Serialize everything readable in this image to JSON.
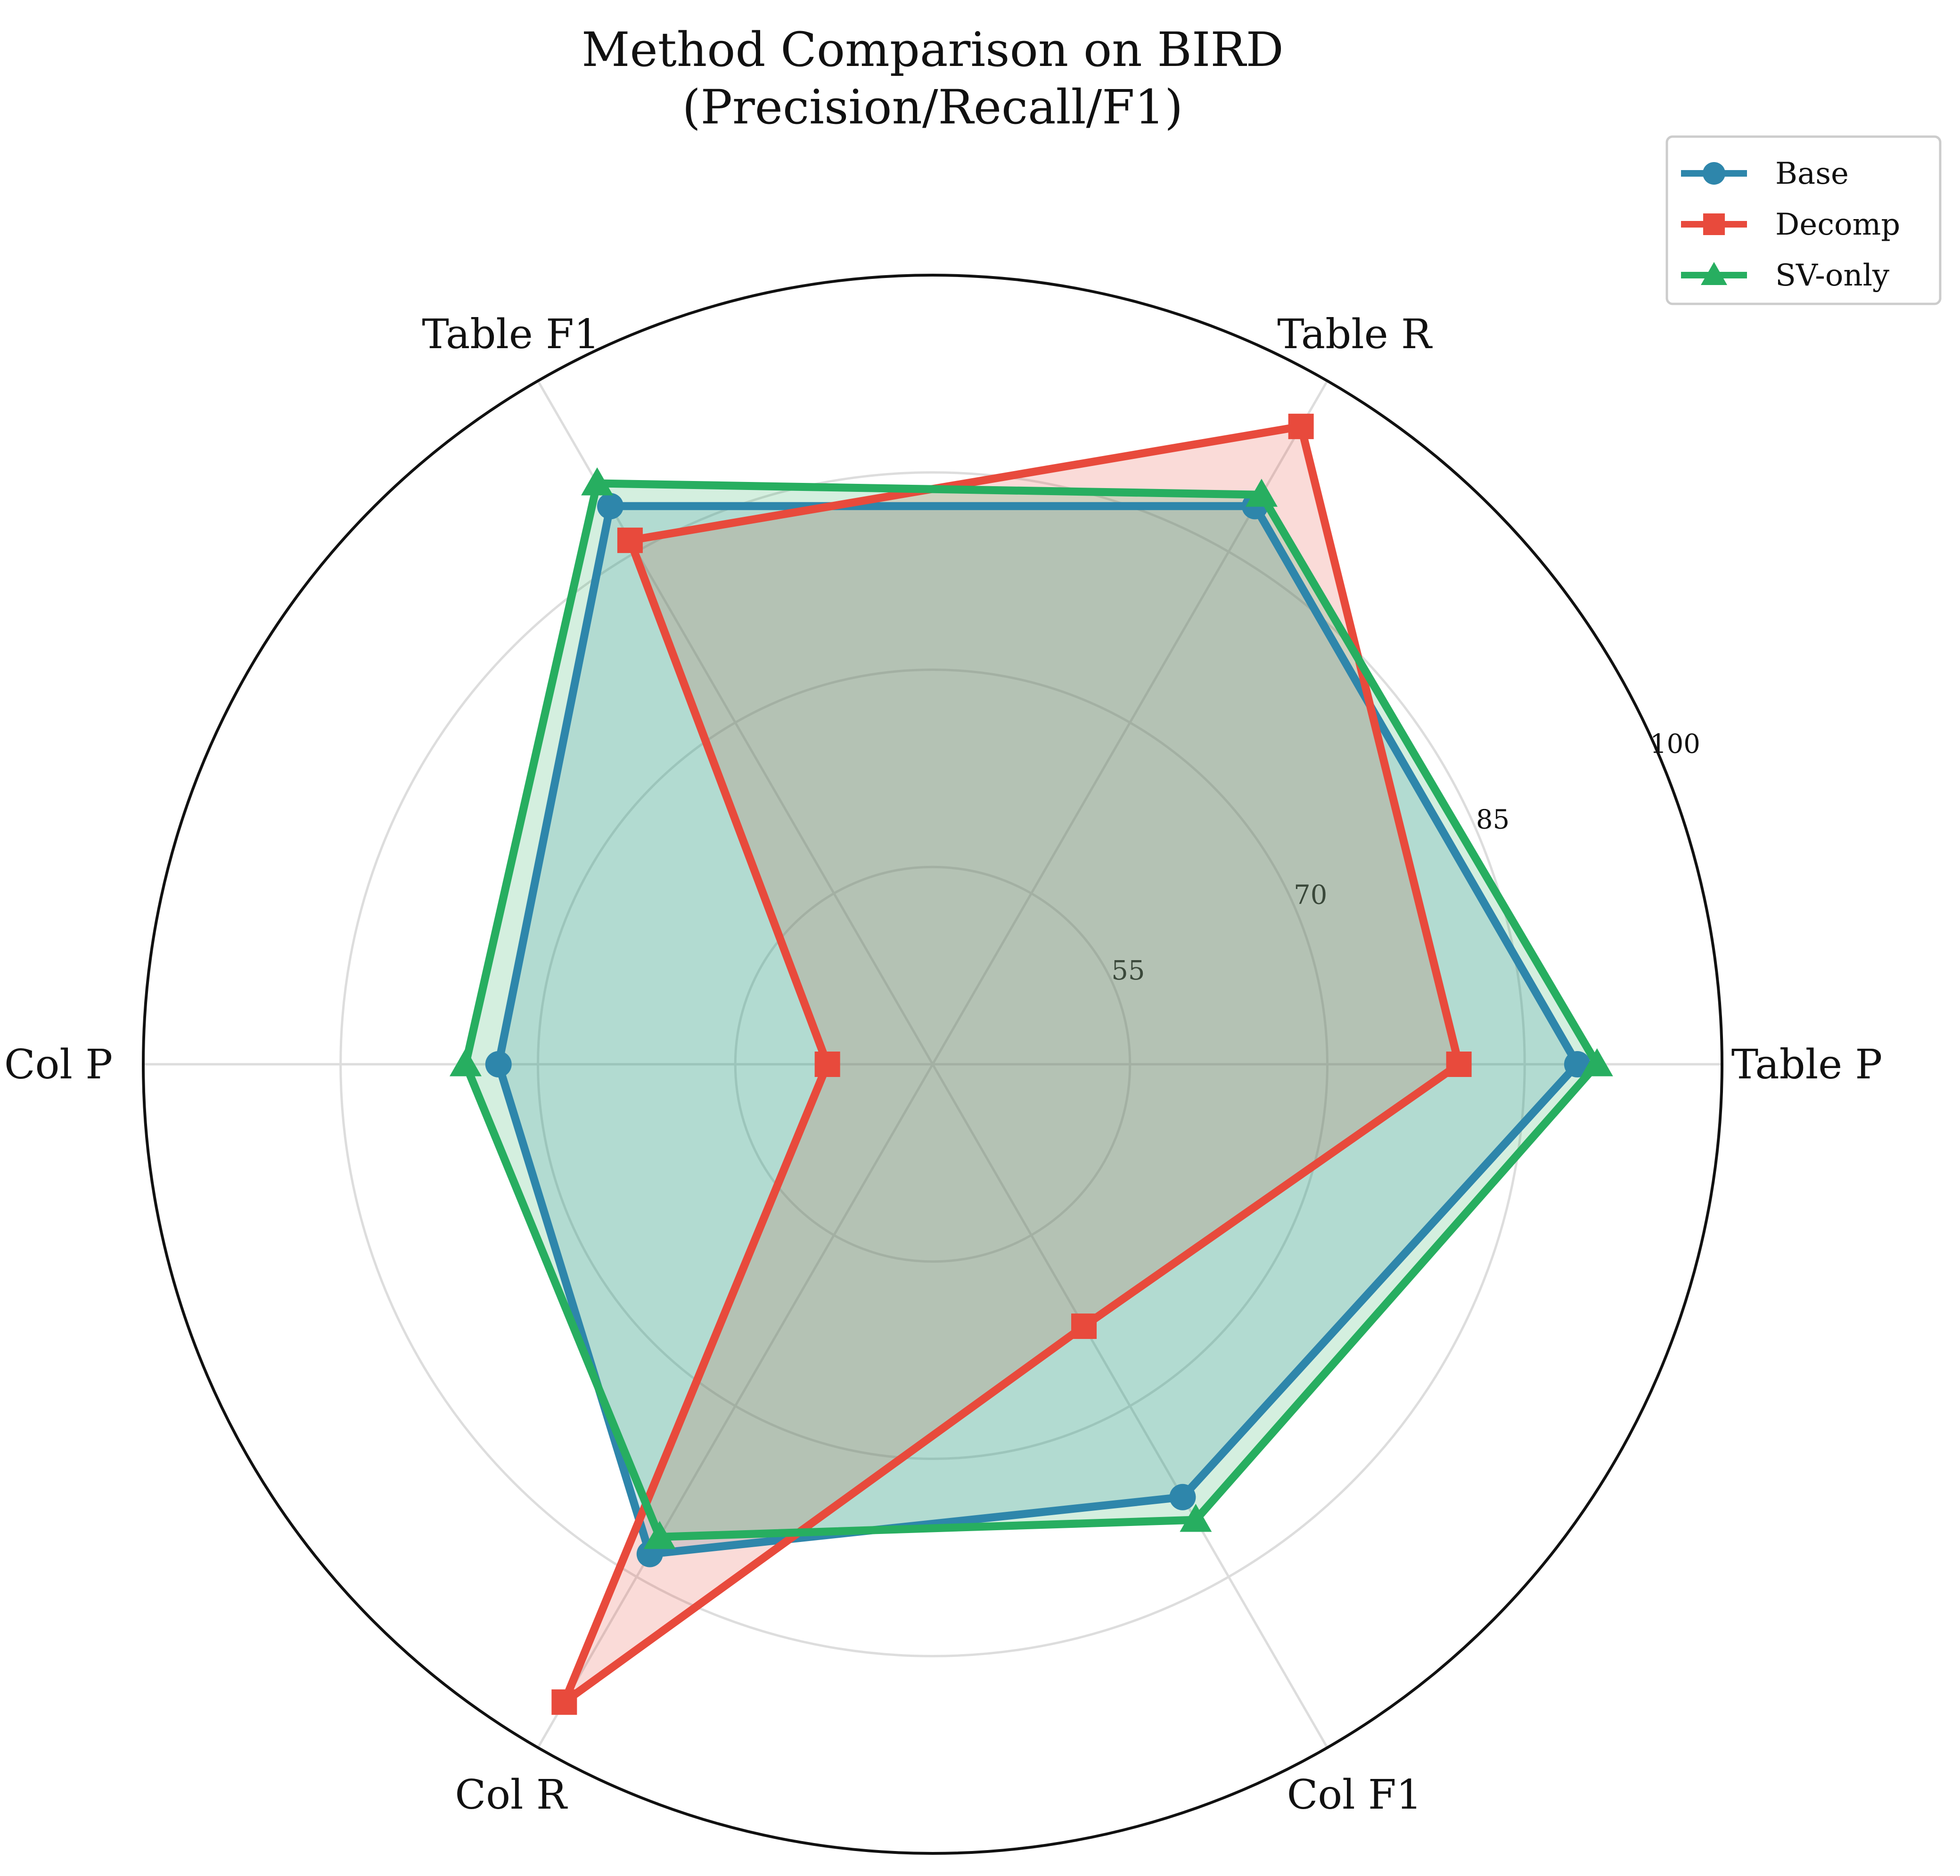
{
  "chart_data": {
    "type": "radar",
    "title_lines": [
      "Method Comparison on BIRD",
      "(Precision/Recall/F1)"
    ],
    "categories": [
      "Table P",
      "Table R",
      "Table F1",
      "Col P",
      "Col R",
      "Col F1"
    ],
    "r_ticks": [
      55,
      70,
      85,
      100
    ],
    "r_range": [
      40,
      100
    ],
    "grid": true,
    "legend_position": "top-right",
    "series": [
      {
        "name": "Base",
        "color": "#2e86ab",
        "marker": "circle",
        "values": [
          89,
          89,
          89,
          73,
          83,
          78
        ]
      },
      {
        "name": "Decomp",
        "color": "#e84a3c",
        "marker": "square",
        "values": [
          80,
          96,
          86,
          48,
          96,
          63
        ]
      },
      {
        "name": "SV-only",
        "color": "#27ae60",
        "marker": "triangle",
        "values": [
          90.5,
          90,
          91,
          75.5,
          81.5,
          80
        ]
      }
    ]
  }
}
